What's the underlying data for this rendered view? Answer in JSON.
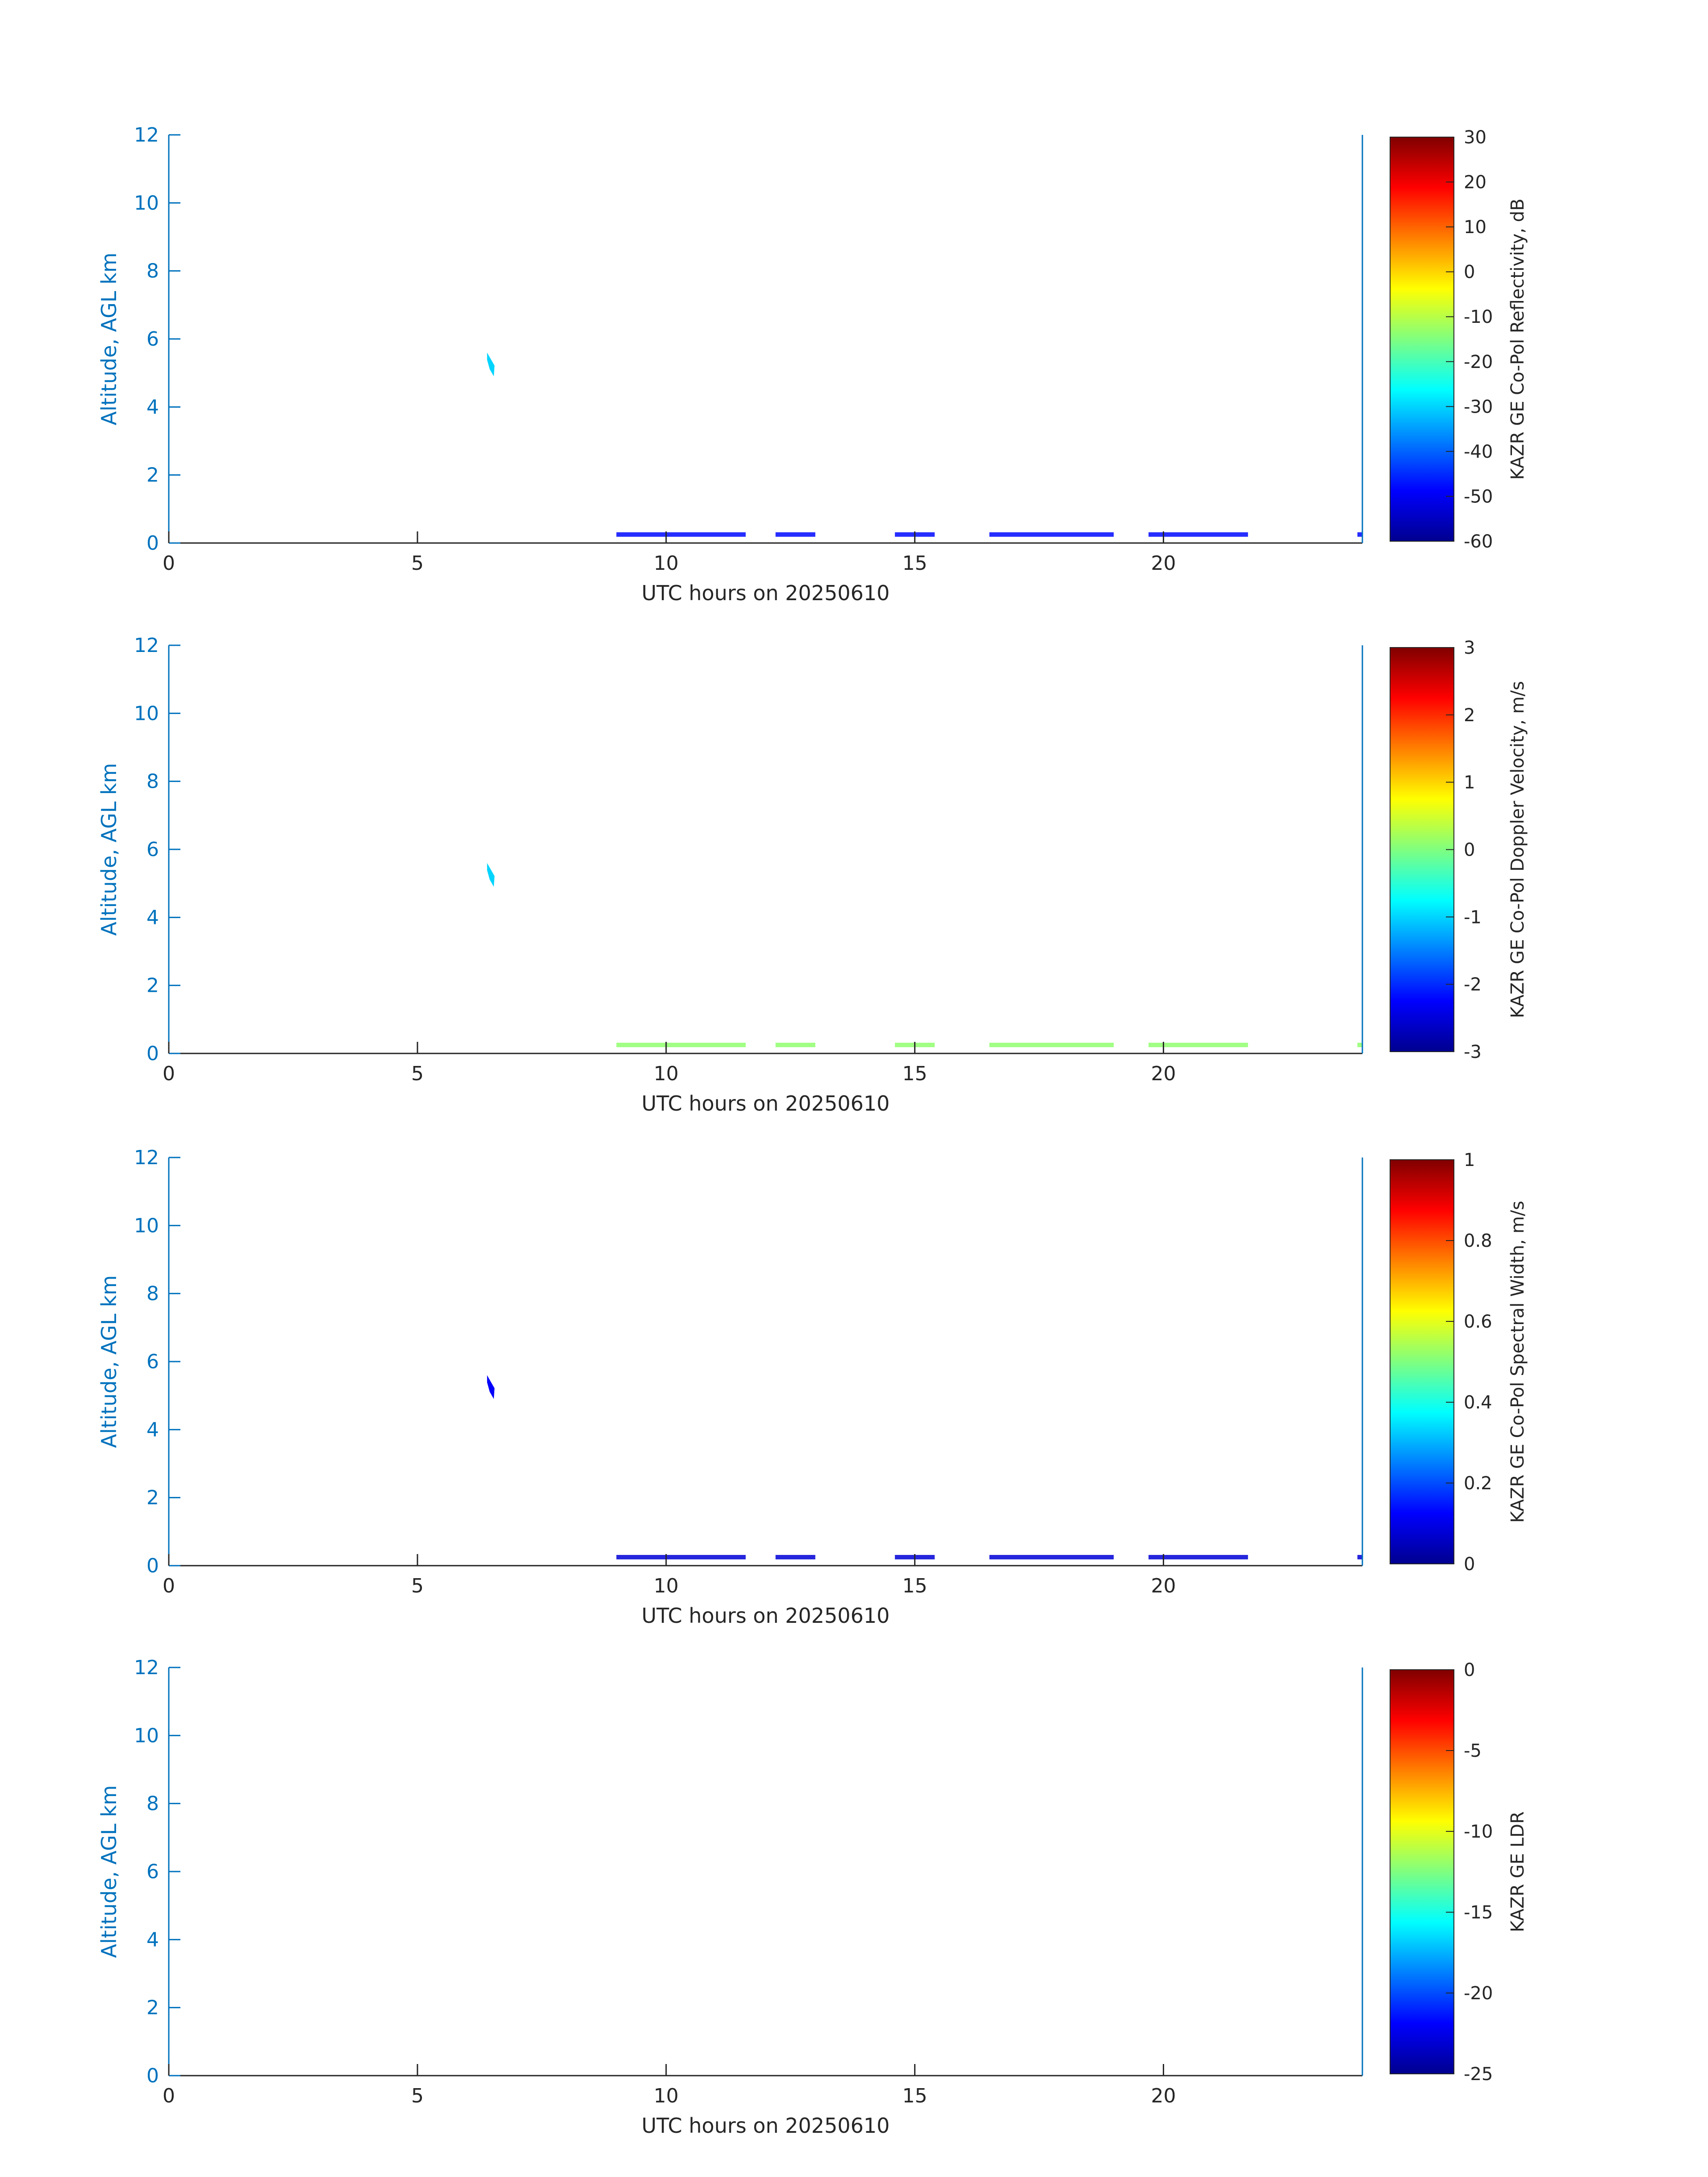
{
  "figure": {
    "axis_color": "#0072bd",
    "panel_outline_color": "#262626",
    "text_color": "#262626"
  },
  "chart_data": [
    {
      "type": "heatmap",
      "title": "",
      "xlabel": "UTC hours on 20250610",
      "ylabel": "Altitude, AGL km",
      "xlim": [
        0,
        24
      ],
      "ylim": [
        0,
        12
      ],
      "x_ticks": [
        0,
        5,
        10,
        15,
        20
      ],
      "y_ticks": [
        0,
        2,
        4,
        6,
        8,
        10,
        12
      ],
      "colormap": "jet",
      "colorbar": {
        "label": "KAZR GE Co-Pol Reflectivity, dB",
        "range": [
          -60,
          30
        ],
        "ticks": [
          -60,
          -50,
          -40,
          -30,
          -20,
          -10,
          0,
          10,
          20,
          30
        ]
      },
      "features": [
        {
          "description": "isolated echo",
          "x_range": [
            6.4,
            6.55
          ],
          "y_range": [
            4.9,
            5.6
          ],
          "value": -30
        },
        {
          "description": "near-surface returns",
          "segments": [
            [
              9.0,
              11.6
            ],
            [
              12.2,
              13.0
            ],
            [
              14.6,
              15.4
            ],
            [
              16.5,
              19.0
            ],
            [
              19.7,
              21.7
            ],
            [
              23.9,
              24.0
            ]
          ],
          "altitude": 0.25,
          "value": -48
        }
      ]
    },
    {
      "type": "heatmap",
      "title": "",
      "xlabel": "UTC hours on 20250610",
      "ylabel": "Altitude, AGL km",
      "xlim": [
        0,
        24
      ],
      "ylim": [
        0,
        12
      ],
      "x_ticks": [
        0,
        5,
        10,
        15,
        20
      ],
      "y_ticks": [
        0,
        2,
        4,
        6,
        8,
        10,
        12
      ],
      "colormap": "jet",
      "colorbar": {
        "label": "KAZR GE Co-Pol Doppler Velocity, m/s",
        "range": [
          -3,
          3
        ],
        "ticks": [
          -3,
          -2,
          -1,
          0,
          1,
          2,
          3
        ]
      },
      "features": [
        {
          "description": "isolated echo",
          "x_range": [
            6.4,
            6.55
          ],
          "y_range": [
            4.9,
            5.6
          ],
          "value": -1.0
        },
        {
          "description": "near-surface returns",
          "segments": [
            [
              9.0,
              11.6
            ],
            [
              12.2,
              13.0
            ],
            [
              14.6,
              15.4
            ],
            [
              16.5,
              19.0
            ],
            [
              19.7,
              21.7
            ],
            [
              23.9,
              24.0
            ]
          ],
          "altitude": 0.25,
          "value": 0.1
        }
      ]
    },
    {
      "type": "heatmap",
      "title": "",
      "xlabel": "UTC hours on 20250610",
      "ylabel": "Altitude, AGL km",
      "xlim": [
        0,
        24
      ],
      "ylim": [
        0,
        12
      ],
      "x_ticks": [
        0,
        5,
        10,
        15,
        20
      ],
      "y_ticks": [
        0,
        2,
        4,
        6,
        8,
        10,
        12
      ],
      "colormap": "jet",
      "colorbar": {
        "label": "KAZR GE Co-Pol Spectral Width, m/s",
        "range": [
          0,
          1
        ],
        "ticks": [
          0,
          0.2,
          0.4,
          0.6,
          0.8,
          1
        ]
      },
      "features": [
        {
          "description": "isolated echo",
          "x_range": [
            6.4,
            6.55
          ],
          "y_range": [
            4.9,
            5.6
          ],
          "value": 0.12
        },
        {
          "description": "near-surface returns",
          "segments": [
            [
              9.0,
              11.6
            ],
            [
              12.2,
              13.0
            ],
            [
              14.6,
              15.4
            ],
            [
              16.5,
              19.0
            ],
            [
              19.7,
              21.7
            ],
            [
              23.9,
              24.0
            ]
          ],
          "altitude": 0.25,
          "value": 0.08
        }
      ]
    },
    {
      "type": "heatmap",
      "title": "",
      "xlabel": "UTC hours on 20250610",
      "ylabel": "Altitude, AGL km",
      "xlim": [
        0,
        24
      ],
      "ylim": [
        0,
        12
      ],
      "x_ticks": [
        0,
        5,
        10,
        15,
        20
      ],
      "y_ticks": [
        0,
        2,
        4,
        6,
        8,
        10,
        12
      ],
      "colormap": "jet",
      "colorbar": {
        "label": "KAZR GE LDR",
        "range": [
          -25,
          0
        ],
        "ticks": [
          -25,
          -20,
          -15,
          -10,
          -5,
          0
        ]
      },
      "features": []
    }
  ]
}
